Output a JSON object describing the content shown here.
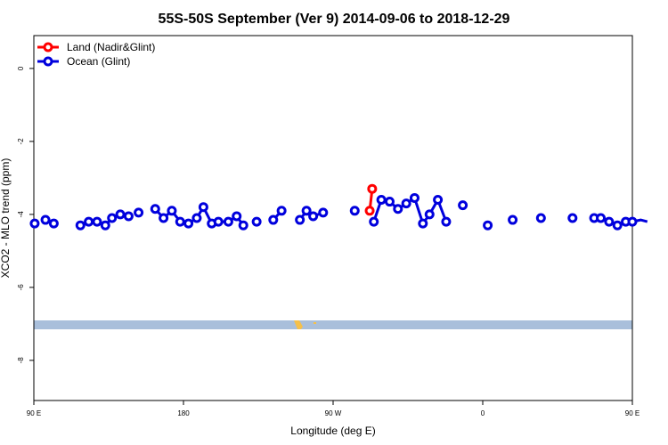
{
  "chart_data": {
    "type": "line",
    "title": "55S-50S September (Ver 9)   2014-09-06 to 2018-12-29",
    "xlabel": "Longitude (deg E)",
    "ylabel": "XCO2 - MLO trend (ppm)",
    "xlim": [
      90,
      450
    ],
    "ylim": [
      -9.1,
      0.9
    ],
    "x_ticks": [
      {
        "value": 90,
        "label": "90 E"
      },
      {
        "value": 180,
        "label": "180"
      },
      {
        "value": 270,
        "label": "90 W"
      },
      {
        "value": 360,
        "label": "0"
      },
      {
        "value": 450,
        "label": "90 E"
      },
      {
        "value": 540,
        "label": "180"
      }
    ],
    "y_ticks": [
      {
        "value": 0,
        "label": "0"
      },
      {
        "value": -2,
        "label": "-2"
      },
      {
        "value": -4,
        "label": "-4"
      },
      {
        "value": -6,
        "label": "-6"
      },
      {
        "value": -8,
        "label": "-8"
      }
    ],
    "legend_position": "top-left",
    "colors": {
      "land": "#ff0000",
      "ocean": "#0000dd",
      "band": "#a9bfdb",
      "land_mask": "#f5c04a"
    },
    "series": [
      {
        "name": "Land (Nadir&Glint)",
        "color": "#ff0000",
        "segments": [
          [
            [
              292,
              -3.9
            ],
            [
              293.5,
              -3.3
            ]
          ]
        ]
      },
      {
        "name": "Ocean (Glint)",
        "color": "#0000dd",
        "segments": [
          [
            [
              90.5,
              -4.25
            ]
          ],
          [
            [
              97,
              -4.15
            ],
            [
              102,
              -4.25
            ]
          ],
          [
            [
              118,
              -4.3
            ],
            [
              123,
              -4.2
            ],
            [
              128,
              -4.2
            ],
            [
              133,
              -4.3
            ],
            [
              137,
              -4.1
            ],
            [
              142,
              -4.0
            ],
            [
              147,
              -4.05
            ]
          ],
          [
            [
              153,
              -3.95
            ]
          ],
          [
            [
              163,
              -3.85
            ],
            [
              168,
              -4.1
            ],
            [
              173,
              -3.9
            ],
            [
              178,
              -4.2
            ],
            [
              183,
              -4.25
            ],
            [
              188,
              -4.1
            ],
            [
              192,
              -3.8
            ],
            [
              197,
              -4.25
            ],
            [
              201,
              -4.2
            ],
            [
              207,
              -4.2
            ],
            [
              212,
              -4.05
            ],
            [
              216,
              -4.3
            ]
          ],
          [
            [
              224,
              -4.2
            ]
          ],
          [
            [
              234,
              -4.15
            ],
            [
              239,
              -3.9
            ]
          ],
          [
            [
              250,
              -4.15
            ],
            [
              254,
              -3.9
            ],
            [
              258,
              -4.05
            ],
            [
              264,
              -3.95
            ]
          ],
          [
            [
              283,
              -3.9
            ]
          ],
          [
            [
              294.5,
              -4.2
            ],
            [
              299,
              -3.6
            ],
            [
              304,
              -3.65
            ],
            [
              309,
              -3.85
            ],
            [
              314,
              -3.7
            ],
            [
              319,
              -3.55
            ],
            [
              324,
              -4.25
            ],
            [
              328,
              -4.0
            ],
            [
              333,
              -3.6
            ],
            [
              338,
              -4.2
            ]
          ],
          [
            [
              348,
              -3.75
            ]
          ],
          [
            [
              363,
              -4.3
            ]
          ],
          [
            [
              378,
              -4.15
            ]
          ],
          [
            [
              395,
              -4.1
            ]
          ],
          [
            [
              414,
              -4.1
            ]
          ],
          [
            [
              427,
              -4.1
            ],
            [
              431,
              -4.1
            ],
            [
              436,
              -4.2
            ],
            [
              441,
              -4.3
            ],
            [
              446,
              -4.2
            ],
            [
              450,
              -4.2
            ],
            [
              455,
              -4.15
            ],
            [
              459,
              -4.2
            ]
          ]
        ]
      }
    ]
  },
  "legend": [
    {
      "label": "Land (Nadir&Glint)",
      "color": "#ff0000"
    },
    {
      "label": "Ocean (Glint)",
      "color": "#0000dd"
    }
  ]
}
